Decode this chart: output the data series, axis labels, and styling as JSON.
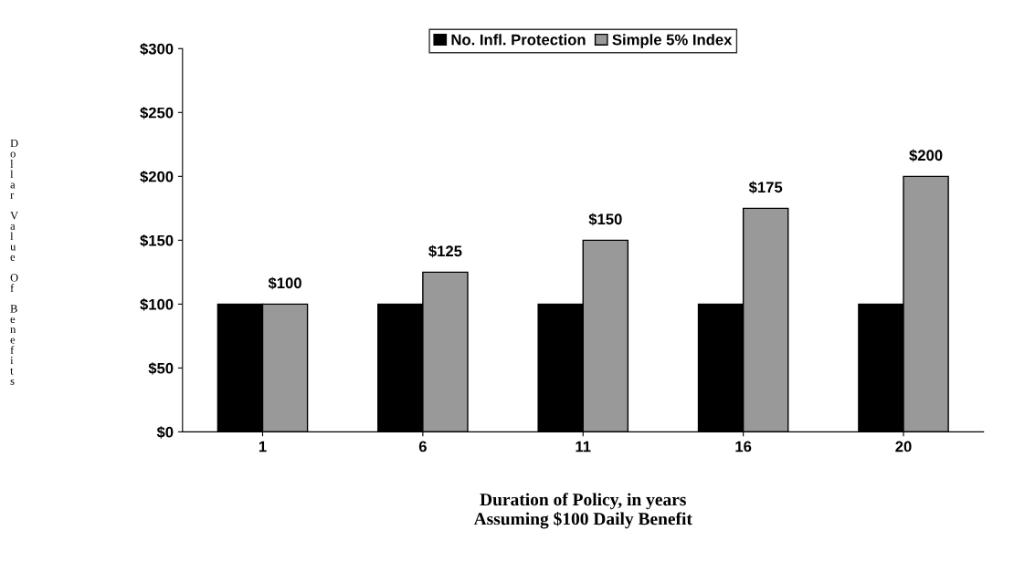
{
  "chart_data": {
    "type": "bar",
    "xlabel": "Duration of Policy, in years\nAssuming $100 Daily Benefit",
    "ylabel": "Dollar Value Of Benefits",
    "categories": [
      "1",
      "6",
      "11",
      "16",
      "20"
    ],
    "series": [
      {
        "name": "No. Infl. Protection",
        "color": "#000000",
        "values": [
          100,
          100,
          100,
          100,
          100
        ]
      },
      {
        "name": "Simple 5% Index",
        "color": "#999999",
        "values": [
          100,
          125,
          150,
          175,
          200
        ],
        "value_labels": [
          "$100",
          "$125",
          "$150",
          "$175",
          "$200"
        ]
      }
    ],
    "ylim": [
      0,
      300
    ],
    "yticks": [
      {
        "value": 0,
        "label": "$0"
      },
      {
        "value": 50,
        "label": "$50"
      },
      {
        "value": 100,
        "label": "$100"
      },
      {
        "value": 150,
        "label": "$150"
      },
      {
        "value": 200,
        "label": "$200"
      },
      {
        "value": 250,
        "label": "$250"
      },
      {
        "value": 300,
        "label": "$300"
      }
    ],
    "grid": false,
    "legend": "top"
  }
}
